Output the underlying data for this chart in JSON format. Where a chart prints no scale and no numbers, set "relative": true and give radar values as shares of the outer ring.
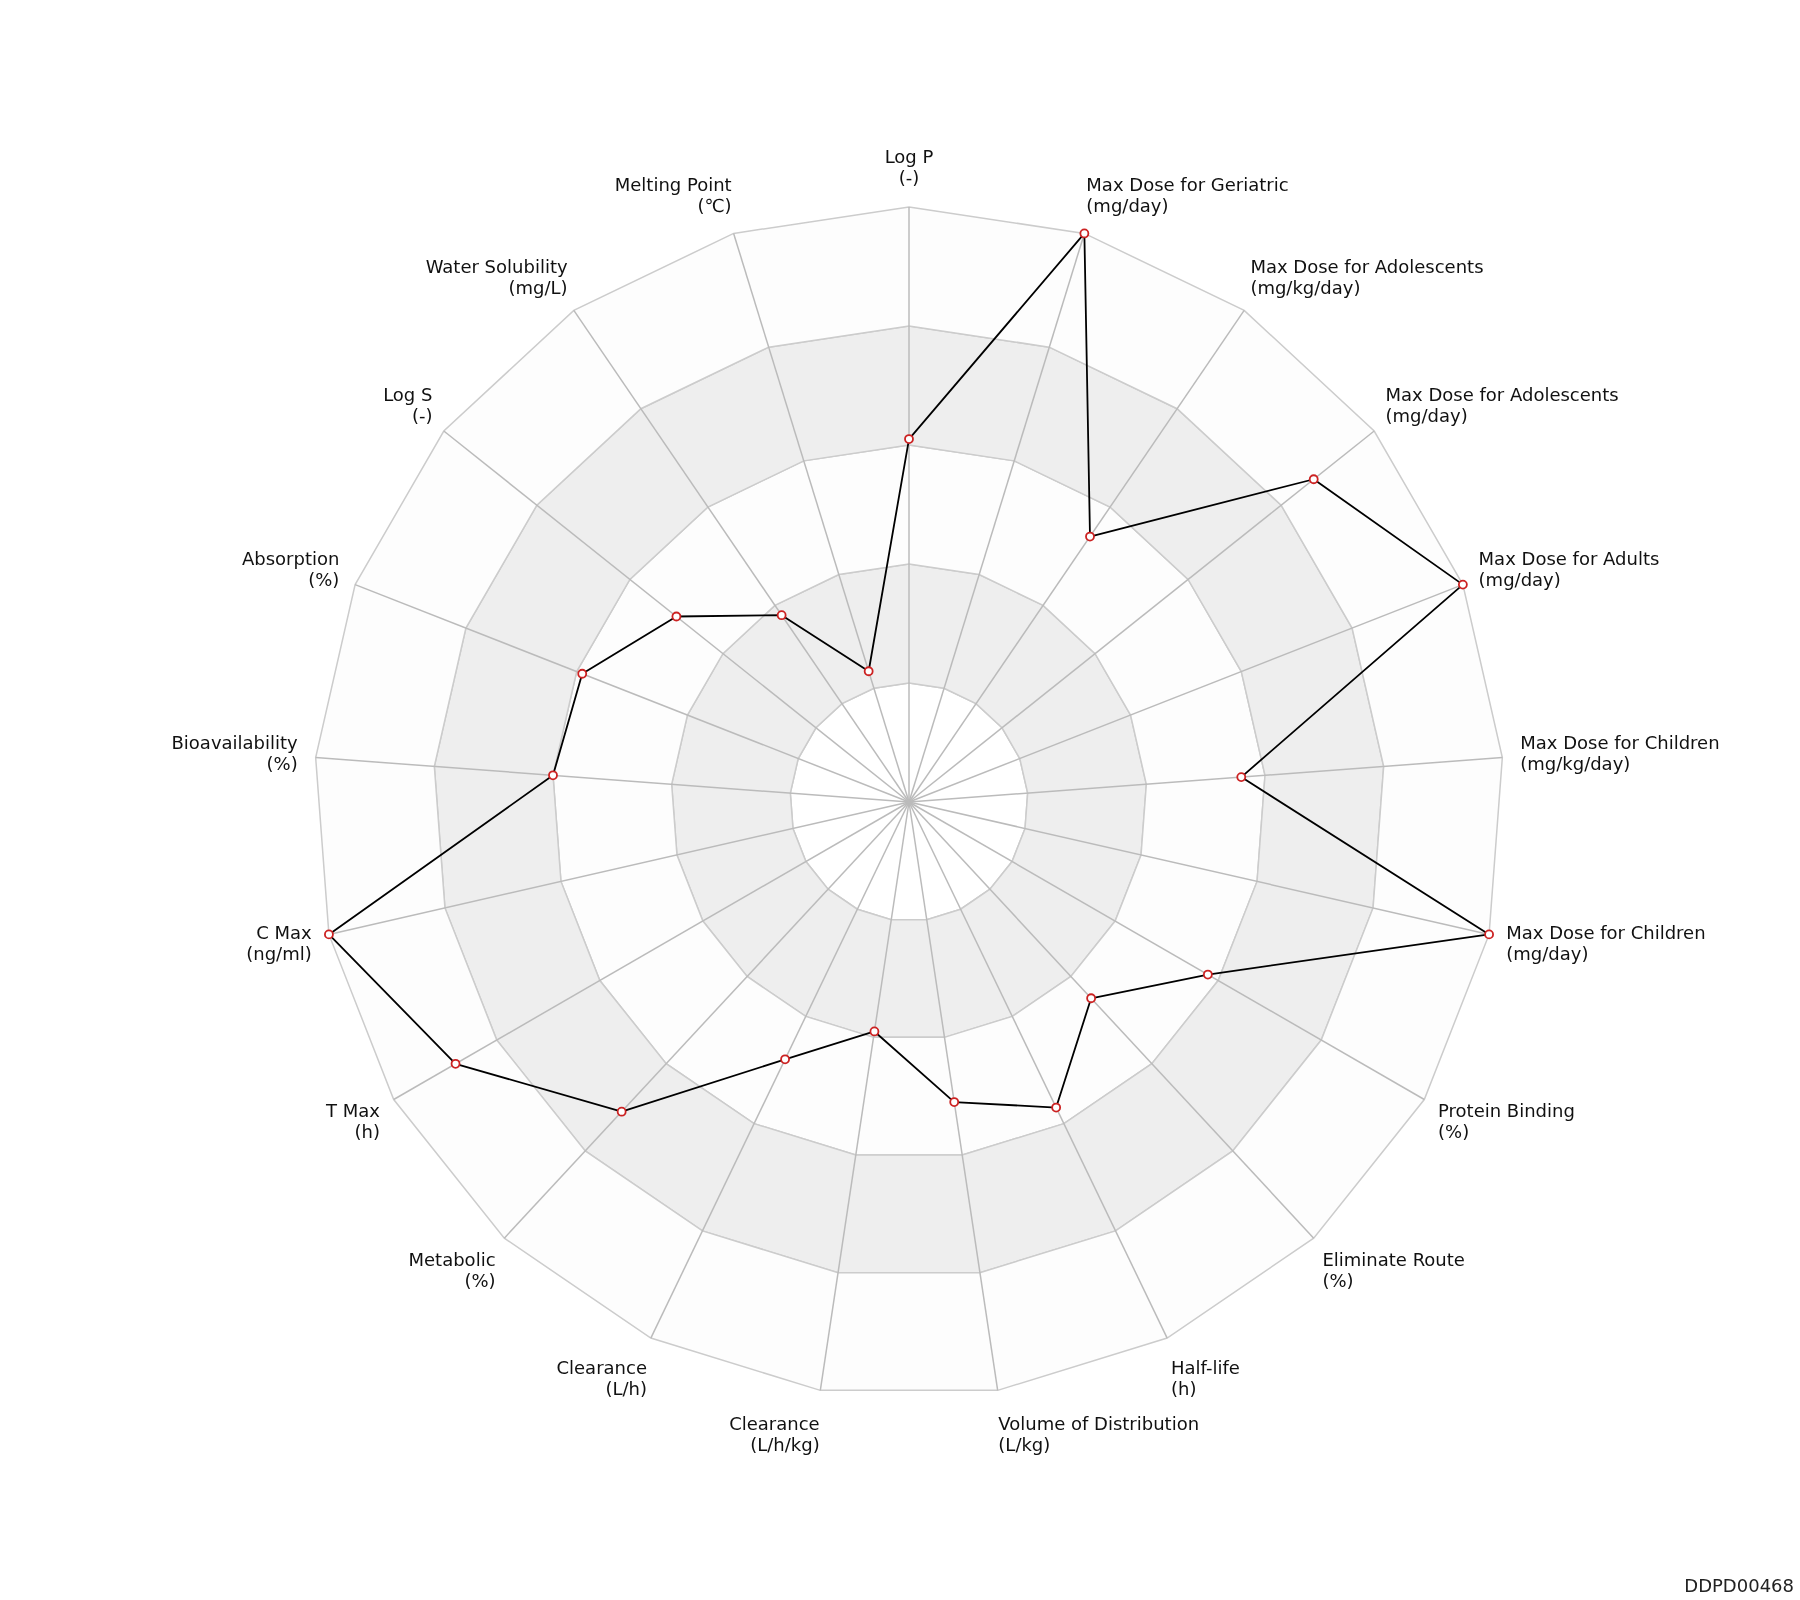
{
  "chart_data": {
    "type": "radar",
    "relative": true,
    "grid": true,
    "legend": false,
    "marker": "circle",
    "categories": [
      "Log P\n(-)",
      "Max Dose for Geriatric\n(mg/day)",
      "Max Dose for Adolescents\n(mg/kg/day)",
      "Max Dose for Adolescents\n(mg/day)",
      "Max Dose for Adults\n(mg/day)",
      "Max Dose for Children\n(mg/kg/day)",
      "Max Dose for Children\n(mg/day)",
      "Protein Binding\n(%)",
      "Eliminate Route\n(%)",
      "Half-life\n(h)",
      "Volume of Distribution\n(L/kg)",
      "Clearance\n(L/h/kg)",
      "Clearance\n(L/h)",
      "Metabolic\n(%)",
      "T Max\n(h)",
      "C Max\n(ng/ml)",
      "Bioavailability\n(%)",
      "Absorption\n(%)",
      "Log S\n(-)",
      "Water Solubility\n(mg/L)",
      "Melting Point\n(℃)"
    ],
    "series": [
      {
        "color": "#000000",
        "values": [
          0.61,
          1,
          0.54,
          0.87,
          1,
          0.56,
          1,
          0.58,
          0.45,
          0.57,
          0.51,
          0.39,
          0.48,
          0.71,
          0.88,
          1,
          0.6,
          0.59,
          0.5,
          0.38,
          0.23
        ]
      }
    ],
    "annotations": [
      "DDPD00468"
    ]
  }
}
